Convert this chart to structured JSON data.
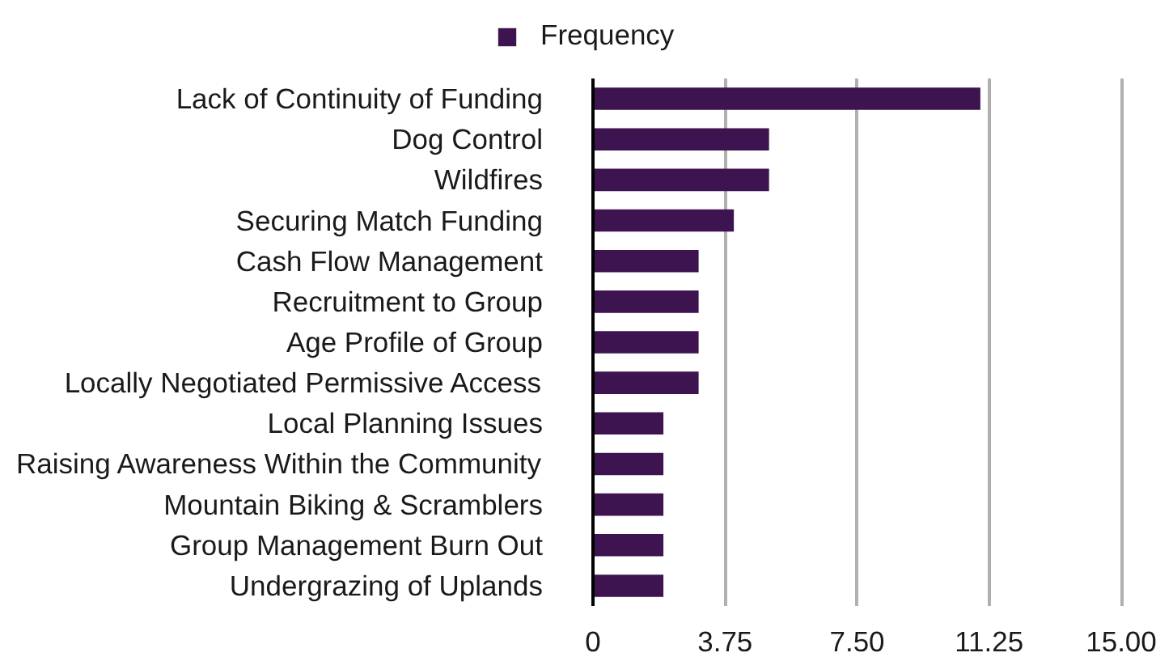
{
  "chart_data": {
    "type": "bar",
    "orientation": "horizontal",
    "categories": [
      "Lack of Continuity of Funding",
      "Dog Control",
      "Wildfires",
      "Securing Match Funding",
      "Cash Flow Management",
      "Recruitment to Group",
      "Age Profile of Group",
      "Locally Negotiated Permissive Access",
      "Local Planning Issues",
      "Raising Awareness Within the Community",
      "Mountain Biking & Scramblers",
      "Group Management Burn Out",
      "Undergrazing of Uplands"
    ],
    "series": [
      {
        "name": "Frequency",
        "color": "#3d1450",
        "values": [
          11,
          5,
          5,
          4,
          3,
          3,
          3,
          3,
          2,
          2,
          2,
          2,
          2
        ]
      }
    ],
    "xlim": [
      0,
      15
    ],
    "xticks": [
      0,
      3.75,
      {
        "value": 7.5,
        "label": "7.50"
      },
      11.25,
      {
        "value": 15,
        "label": "15.00"
      }
    ],
    "grid": "x",
    "legend": "top"
  }
}
